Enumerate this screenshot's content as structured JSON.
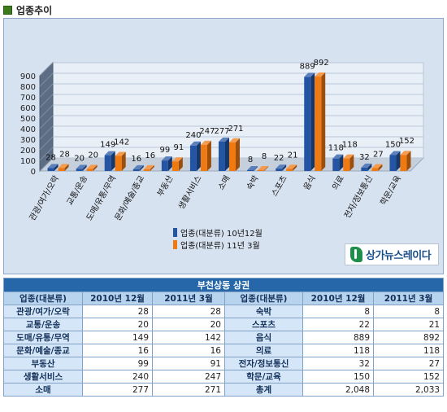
{
  "section": {
    "title": "업종추이"
  },
  "chart_data": {
    "type": "bar",
    "categories": [
      "관광/여가/오락",
      "교통/운송",
      "도매/유통/무역",
      "문화/예술/종교",
      "부동산",
      "생활서비스",
      "소매",
      "숙박",
      "스포츠",
      "음식",
      "의료",
      "전자/정보통신",
      "학문/교육"
    ],
    "series": [
      {
        "name": "업종(대분류) 10년12월",
        "values": [
          28,
          20,
          149,
          16,
          99,
          240,
          277,
          8,
          22,
          889,
          118,
          32,
          150
        ]
      },
      {
        "name": "업종(대분류) 11년 3월",
        "values": [
          28,
          20,
          142,
          16,
          91,
          247,
          271,
          8,
          21,
          892,
          118,
          27,
          152
        ]
      }
    ],
    "yticks": [
      "900",
      "800",
      "700",
      "600",
      "500",
      "400",
      "300",
      "200",
      "100",
      "0"
    ],
    "ylim": [
      0,
      900
    ],
    "grid": true,
    "legend_position": "bottom-center",
    "colors": {
      "series1": "#2455a4",
      "series2": "#f07a12",
      "background": "#d7e2f0"
    }
  },
  "brand": {
    "text": "상가뉴스레이다",
    "icon": "brand-logo-icon"
  },
  "table": {
    "title": "부천상동 상권",
    "headers": [
      "업종(대분류)",
      "2010년 12월",
      "2011년 3월",
      "업종(대분류)",
      "2010년 12월",
      "2011년 3월"
    ],
    "rows": [
      [
        "관광/여가/오락",
        "28",
        "28",
        "숙박",
        "8",
        "8"
      ],
      [
        "교통/운송",
        "20",
        "20",
        "스포츠",
        "22",
        "21"
      ],
      [
        "도매/유통/무역",
        "149",
        "142",
        "음식",
        "889",
        "892"
      ],
      [
        "문화/예술/종교",
        "16",
        "16",
        "의료",
        "118",
        "118"
      ],
      [
        "부동산",
        "99",
        "91",
        "전자/정보통신",
        "32",
        "27"
      ],
      [
        "생활서비스",
        "240",
        "247",
        "학문/교육",
        "150",
        "152"
      ],
      [
        "소매",
        "277",
        "271",
        "총계",
        "2,048",
        "2,033"
      ]
    ]
  }
}
